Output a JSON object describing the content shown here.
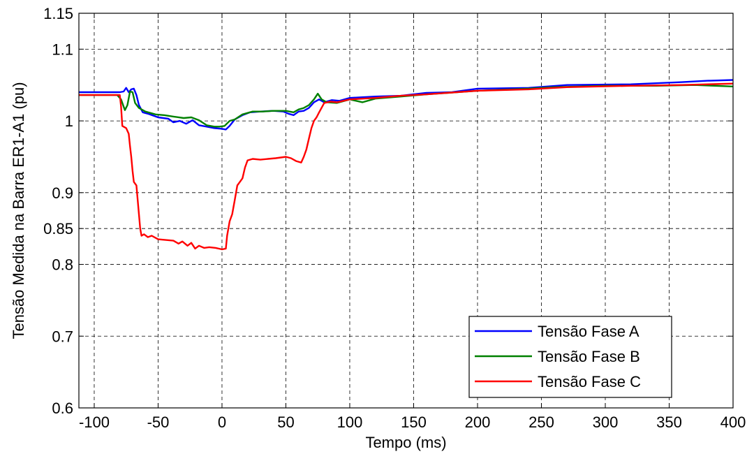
{
  "chart_data": {
    "type": "line",
    "xlabel": "Tempo (ms)",
    "ylabel": "Tensão Medida na Barra ER1-A1 (pu)",
    "xlim": [
      -112,
      400
    ],
    "ylim": [
      0.6,
      1.15
    ],
    "xticks": [
      -100,
      -50,
      0,
      50,
      100,
      150,
      200,
      250,
      300,
      350,
      400
    ],
    "xtick_labels": [
      "-100",
      "-50",
      "0",
      "50",
      "100",
      "150",
      "200",
      "250",
      "300",
      "350",
      "400"
    ],
    "yticks": [
      0.6,
      0.7,
      0.8,
      0.85,
      0.9,
      1.0,
      1.1,
      1.15
    ],
    "ytick_labels": [
      "0.6",
      "0.7",
      "0.8",
      "0.85",
      "0.9",
      "1",
      "1.1",
      "1.15"
    ],
    "grid": true,
    "legend_position": "bottom-right",
    "colors": {
      "A": "#0000ff",
      "B": "#008000",
      "C": "#ff0000"
    },
    "series": [
      {
        "name": "Tensão Fase A",
        "color": "#0000ff",
        "points": [
          [
            -112,
            1.04
          ],
          [
            -80,
            1.04
          ],
          [
            -77,
            1.041
          ],
          [
            -75,
            1.046
          ],
          [
            -73,
            1.04
          ],
          [
            -71,
            1.044
          ],
          [
            -69,
            1.045
          ],
          [
            -67,
            1.036
          ],
          [
            -65,
            1.022
          ],
          [
            -62,
            1.012
          ],
          [
            -58,
            1.01
          ],
          [
            -50,
            1.005
          ],
          [
            -42,
            1.003
          ],
          [
            -38,
            0.998
          ],
          [
            -33,
            1.0
          ],
          [
            -28,
            0.996
          ],
          [
            -23,
            1.001
          ],
          [
            -18,
            0.994
          ],
          [
            -12,
            0.992
          ],
          [
            -6,
            0.99
          ],
          [
            0,
            0.989
          ],
          [
            3,
            0.988
          ],
          [
            6,
            0.993
          ],
          [
            10,
            1.002
          ],
          [
            16,
            1.008
          ],
          [
            22,
            1.012
          ],
          [
            30,
            1.013
          ],
          [
            40,
            1.014
          ],
          [
            48,
            1.013
          ],
          [
            52,
            1.01
          ],
          [
            56,
            1.008
          ],
          [
            60,
            1.013
          ],
          [
            64,
            1.014
          ],
          [
            68,
            1.018
          ],
          [
            72,
            1.026
          ],
          [
            76,
            1.03
          ],
          [
            80,
            1.026
          ],
          [
            86,
            1.029
          ],
          [
            92,
            1.028
          ],
          [
            100,
            1.032
          ],
          [
            110,
            1.033
          ],
          [
            120,
            1.034
          ],
          [
            140,
            1.035
          ],
          [
            160,
            1.039
          ],
          [
            180,
            1.04
          ],
          [
            200,
            1.045
          ],
          [
            240,
            1.046
          ],
          [
            270,
            1.05
          ],
          [
            320,
            1.051
          ],
          [
            360,
            1.054
          ],
          [
            380,
            1.056
          ],
          [
            400,
            1.057
          ]
        ]
      },
      {
        "name": "Tensão Fase B",
        "color": "#008000",
        "points": [
          [
            -112,
            1.036
          ],
          [
            -82,
            1.036
          ],
          [
            -79,
            1.03
          ],
          [
            -76,
            1.015
          ],
          [
            -74,
            1.022
          ],
          [
            -72,
            1.041
          ],
          [
            -70,
            1.04
          ],
          [
            -68,
            1.025
          ],
          [
            -65,
            1.018
          ],
          [
            -60,
            1.013
          ],
          [
            -52,
            1.009
          ],
          [
            -45,
            1.008
          ],
          [
            -38,
            1.006
          ],
          [
            -30,
            1.004
          ],
          [
            -24,
            1.005
          ],
          [
            -18,
            1.001
          ],
          [
            -12,
            0.994
          ],
          [
            -6,
            0.992
          ],
          [
            -2,
            0.992
          ],
          [
            2,
            0.993
          ],
          [
            6,
            1.0
          ],
          [
            10,
            1.002
          ],
          [
            16,
            1.009
          ],
          [
            24,
            1.013
          ],
          [
            32,
            1.013
          ],
          [
            40,
            1.014
          ],
          [
            50,
            1.014
          ],
          [
            56,
            1.012
          ],
          [
            60,
            1.016
          ],
          [
            64,
            1.018
          ],
          [
            68,
            1.022
          ],
          [
            72,
            1.03
          ],
          [
            75,
            1.038
          ],
          [
            78,
            1.03
          ],
          [
            82,
            1.026
          ],
          [
            90,
            1.025
          ],
          [
            100,
            1.03
          ],
          [
            110,
            1.026
          ],
          [
            120,
            1.031
          ],
          [
            140,
            1.034
          ],
          [
            160,
            1.037
          ],
          [
            200,
            1.042
          ],
          [
            240,
            1.045
          ],
          [
            260,
            1.047
          ],
          [
            300,
            1.049
          ],
          [
            340,
            1.049
          ],
          [
            370,
            1.05
          ],
          [
            400,
            1.048
          ]
        ]
      },
      {
        "name": "Tensão Fase C",
        "color": "#ff0000",
        "points": [
          [
            -112,
            1.036
          ],
          [
            -80,
            1.036
          ],
          [
            -79,
            1.02
          ],
          [
            -78,
            0.993
          ],
          [
            -75,
            0.99
          ],
          [
            -73,
            0.982
          ],
          [
            -72,
            0.965
          ],
          [
            -71,
            0.95
          ],
          [
            -70,
            0.93
          ],
          [
            -69,
            0.915
          ],
          [
            -67,
            0.91
          ],
          [
            -66,
            0.89
          ],
          [
            -65,
            0.87
          ],
          [
            -64,
            0.85
          ],
          [
            -63,
            0.84
          ],
          [
            -61,
            0.842
          ],
          [
            -58,
            0.838
          ],
          [
            -55,
            0.84
          ],
          [
            -50,
            0.835
          ],
          [
            -44,
            0.834
          ],
          [
            -38,
            0.833
          ],
          [
            -34,
            0.829
          ],
          [
            -31,
            0.832
          ],
          [
            -27,
            0.826
          ],
          [
            -24,
            0.83
          ],
          [
            -21,
            0.822
          ],
          [
            -18,
            0.826
          ],
          [
            -14,
            0.823
          ],
          [
            -10,
            0.824
          ],
          [
            -5,
            0.823
          ],
          [
            0,
            0.821
          ],
          [
            3,
            0.822
          ],
          [
            4,
            0.84
          ],
          [
            6,
            0.86
          ],
          [
            8,
            0.87
          ],
          [
            10,
            0.89
          ],
          [
            12,
            0.91
          ],
          [
            14,
            0.915
          ],
          [
            16,
            0.92
          ],
          [
            18,
            0.935
          ],
          [
            20,
            0.945
          ],
          [
            24,
            0.947
          ],
          [
            30,
            0.946
          ],
          [
            36,
            0.947
          ],
          [
            42,
            0.948
          ],
          [
            50,
            0.95
          ],
          [
            54,
            0.948
          ],
          [
            58,
            0.944
          ],
          [
            62,
            0.942
          ],
          [
            64,
            0.95
          ],
          [
            66,
            0.96
          ],
          [
            68,
            0.975
          ],
          [
            70,
            0.99
          ],
          [
            72,
            1.0
          ],
          [
            74,
            1.005
          ],
          [
            76,
            1.012
          ],
          [
            80,
            1.025
          ],
          [
            85,
            1.027
          ],
          [
            90,
            1.026
          ],
          [
            100,
            1.03
          ],
          [
            120,
            1.032
          ],
          [
            140,
            1.035
          ],
          [
            160,
            1.037
          ],
          [
            200,
            1.042
          ],
          [
            240,
            1.044
          ],
          [
            270,
            1.047
          ],
          [
            320,
            1.049
          ],
          [
            360,
            1.05
          ],
          [
            400,
            1.052
          ]
        ]
      }
    ]
  }
}
